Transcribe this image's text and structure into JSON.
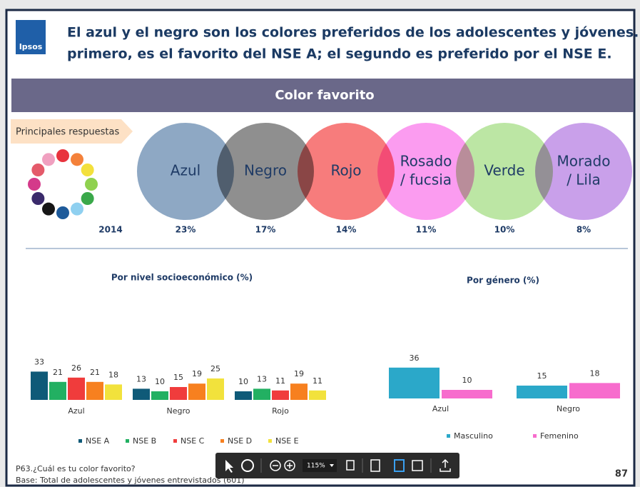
{
  "header": {
    "logo": "Ipsos",
    "title_lines": [
      "El azul y el negro son los colores preferidos de los adolescentes y jóvenes. El",
      "primero, es el favorito del NSE A; el segundo es preferido por el NSE E."
    ]
  },
  "section_title": "Color favorito",
  "ranking": {
    "tag": "Principales respuestas",
    "year": "2014",
    "items": [
      {
        "label": [
          "Azul"
        ],
        "percent": "23%",
        "color": "#8ea8c4"
      },
      {
        "label": [
          "Negro"
        ],
        "percent": "17%",
        "color": "#8f8f8f"
      },
      {
        "label": [
          "Rojo"
        ],
        "percent": "14%",
        "color": "#f77c7c"
      },
      {
        "label": [
          "Rosado",
          "/ fucsia"
        ],
        "percent": "11%",
        "color": "#fb9cf0"
      },
      {
        "label": [
          "Verde"
        ],
        "percent": "10%",
        "color": "#bce6a4"
      },
      {
        "label": [
          "Morado",
          "/ Lila"
        ],
        "percent": "8%",
        "color": "#c9a0ea"
      }
    ]
  },
  "chart_data": [
    {
      "type": "bar",
      "title": "Por nivel socioeconómico (%)",
      "categories": [
        "Azul",
        "Negro",
        "Rojo"
      ],
      "series": [
        {
          "name": "NSE A",
          "color": "#0f5a78",
          "values": [
            33,
            13,
            10
          ]
        },
        {
          "name": "NSE B",
          "color": "#22b062",
          "values": [
            21,
            10,
            13
          ]
        },
        {
          "name": "NSE C",
          "color": "#f03c3c",
          "values": [
            26,
            15,
            11
          ]
        },
        {
          "name": "NSE D",
          "color": "#f7801f",
          "values": [
            21,
            19,
            19
          ]
        },
        {
          "name": "NSE E",
          "color": "#f2e23c",
          "values": [
            18,
            25,
            11
          ]
        }
      ]
    },
    {
      "type": "bar",
      "title": "Por género (%)",
      "categories": [
        "Azul",
        "Negro"
      ],
      "series": [
        {
          "name": "Masculino",
          "color": "#2ba8c9",
          "values": [
            36,
            15
          ]
        },
        {
          "name": "Femenino",
          "color": "#f76ccd",
          "values": [
            10,
            18
          ]
        }
      ]
    }
  ],
  "footer": {
    "question": "P63.¿Cuál es tu color favorito?",
    "base": "Base: Total de adolescentes y jóvenes entrevistados (601)",
    "page": "87"
  },
  "toolbar": {
    "zoom": "115%"
  }
}
